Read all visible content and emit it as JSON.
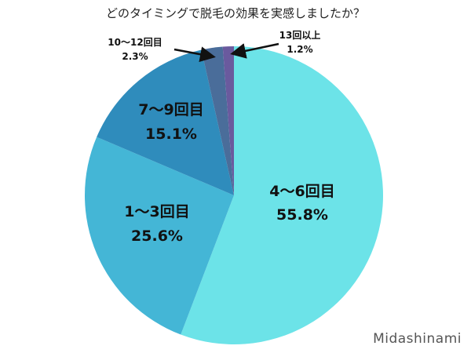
{
  "title": "どのタイミングで脱毛の効果を実感しましたか？",
  "watermark": "Midashinami",
  "chart_data": {
    "type": "pie",
    "title": "どのタイミングで脱毛の効果を実感しましたか？",
    "start_angle_deg": 0,
    "direction": "clockwise",
    "slices": [
      {
        "label": "4〜6回目",
        "value": 55.8,
        "value_label": "55.8%",
        "color": "#6ce3e8"
      },
      {
        "label": "1〜3回目",
        "value": 25.6,
        "value_label": "25.6%",
        "color": "#44b6d6"
      },
      {
        "label": "7〜9回目",
        "value": 15.1,
        "value_label": "15.1%",
        "color": "#2f8cbc"
      },
      {
        "label": "10〜12回目",
        "value": 2.3,
        "value_label": "2.3%",
        "color": "#4a6d9a"
      },
      {
        "label": "13回以上",
        "value": 1.2,
        "value_label": "1.2%",
        "color": "#6a5a9e"
      }
    ],
    "legend": "none"
  },
  "labels": {
    "s0": {
      "name": "4〜6回目",
      "pct": "55.8%"
    },
    "s1": {
      "name": "1〜3回目",
      "pct": "25.6%"
    },
    "s2": {
      "name": "7〜9回目",
      "pct": "15.1%"
    },
    "s3": {
      "name": "10〜12回目",
      "pct": "2.3%"
    },
    "s4": {
      "name": "13回以上",
      "pct": "1.2%"
    }
  }
}
